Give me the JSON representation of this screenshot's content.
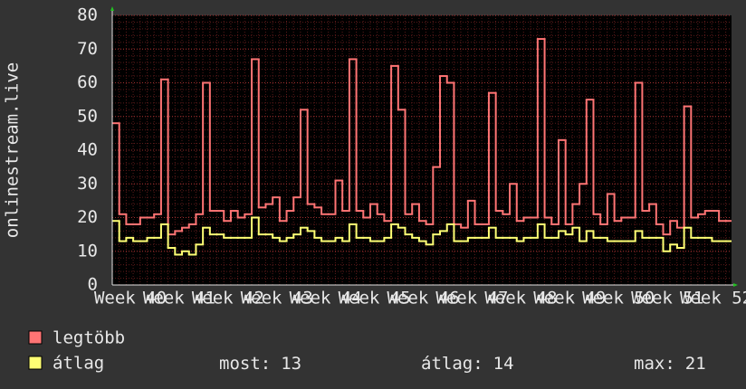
{
  "chart_data": {
    "type": "step",
    "y_label": "onlinestream.live",
    "x": [
      0,
      1,
      2,
      3,
      4,
      5,
      6,
      7,
      8,
      9,
      10,
      11,
      12,
      13,
      14,
      15,
      16,
      17,
      18,
      19,
      20,
      21,
      22,
      23,
      24,
      25,
      26,
      27,
      28,
      29,
      30,
      31,
      32,
      33,
      34,
      35,
      36,
      37,
      38,
      39,
      40,
      41,
      42,
      43,
      44,
      45,
      46,
      47,
      48,
      49,
      50,
      51,
      52,
      53,
      54,
      55,
      56,
      57,
      58,
      59,
      60,
      61,
      62,
      63,
      64,
      65,
      66,
      67,
      68,
      69,
      70,
      71,
      72,
      73,
      74,
      75,
      76,
      77,
      78,
      79,
      80,
      81,
      82,
      83,
      84,
      85,
      86,
      87,
      88
    ],
    "series": [
      {
        "name": "legtöbb",
        "color": "#ff7474",
        "values": [
          48,
          21,
          18,
          18,
          20,
          20,
          21,
          61,
          15,
          16,
          17,
          18,
          21,
          60,
          22,
          22,
          19,
          22,
          20,
          21,
          67,
          23,
          24,
          26,
          19,
          22,
          26,
          52,
          24,
          23,
          21,
          21,
          31,
          22,
          67,
          22,
          20,
          24,
          21,
          19,
          65,
          52,
          21,
          24,
          19,
          18,
          35,
          62,
          60,
          18,
          17,
          25,
          18,
          18,
          57,
          22,
          21,
          30,
          19,
          20,
          20,
          73,
          20,
          18,
          43,
          18,
          24,
          30,
          55,
          21,
          18,
          27,
          19,
          20,
          20,
          60,
          22,
          24,
          18,
          15,
          19,
          17,
          53,
          20,
          21,
          22,
          22,
          19,
          19
        ]
      },
      {
        "name": "átlag",
        "color": "#ffff74",
        "values": [
          19,
          13,
          14,
          13,
          13,
          14,
          14,
          18,
          11,
          9,
          10,
          9,
          12,
          17,
          15,
          15,
          14,
          14,
          14,
          14,
          20,
          15,
          15,
          14,
          13,
          14,
          15,
          17,
          16,
          14,
          13,
          13,
          14,
          13,
          18,
          14,
          14,
          13,
          13,
          14,
          18,
          17,
          15,
          14,
          13,
          12,
          15,
          16,
          18,
          13,
          13,
          14,
          14,
          14,
          17,
          14,
          14,
          14,
          13,
          14,
          14,
          18,
          14,
          14,
          16,
          15,
          17,
          13,
          16,
          14,
          14,
          13,
          13,
          13,
          13,
          16,
          14,
          14,
          14,
          10,
          12,
          11,
          17,
          14,
          14,
          14,
          13,
          13,
          13
        ]
      }
    ],
    "xlim": [
      0,
      88.8
    ],
    "xticks": [
      {
        "value": 2.6,
        "label": "Week 40"
      },
      {
        "value": 9.6,
        "label": "Week 41"
      },
      {
        "value": 16.6,
        "label": "Week 42"
      },
      {
        "value": 23.6,
        "label": "Week 43"
      },
      {
        "value": 30.6,
        "label": "Week 44"
      },
      {
        "value": 37.6,
        "label": "Week 45"
      },
      {
        "value": 44.6,
        "label": "Week 46"
      },
      {
        "value": 51.6,
        "label": "Week 47"
      },
      {
        "value": 58.6,
        "label": "Week 48"
      },
      {
        "value": 65.6,
        "label": "Week 49"
      },
      {
        "value": 72.6,
        "label": "Week 50"
      },
      {
        "value": 79.6,
        "label": "Week 51"
      },
      {
        "value": 86.6,
        "label": "Week 52"
      }
    ],
    "ylim": [
      0,
      80
    ],
    "yticks": [
      0,
      10,
      20,
      30,
      40,
      50,
      60,
      70,
      80
    ],
    "grid": true,
    "stats": [
      {
        "label": "most:",
        "value": 13
      },
      {
        "label": "átlag:",
        "value": 14
      },
      {
        "label": "max:",
        "value": 21
      }
    ]
  }
}
